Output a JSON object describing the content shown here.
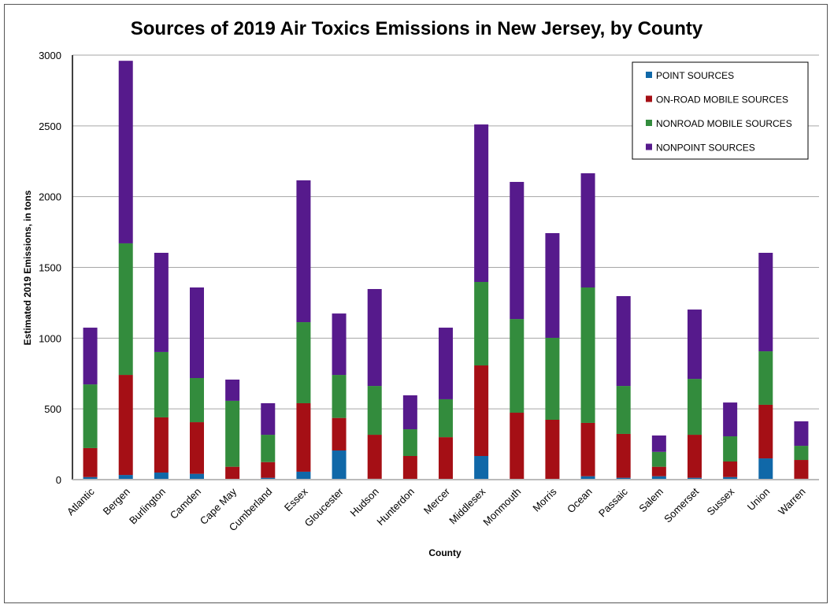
{
  "chart_data": {
    "type": "bar",
    "stacked": true,
    "title": "Sources of 2019 Air Toxics Emissions in New Jersey, by County",
    "xlabel": "County",
    "ylabel": "Estimated 2019  Emissions, in tons",
    "ylim": [
      0,
      3000
    ],
    "yticks": [
      0,
      500,
      1000,
      1500,
      2000,
      2500,
      3000
    ],
    "grid": true,
    "legend_position": "top-right",
    "categories": [
      "Atlantic",
      "Bergen",
      "Burlington",
      "Camden",
      "Cape May",
      "Cumberland",
      "Essex",
      "Gloucester",
      "Hudson",
      "Hunterdon",
      "Mercer",
      "Middlesex",
      "Monmouth",
      "Morris",
      "Ocean",
      "Passaic",
      "Salem",
      "Somerset",
      "Sussex",
      "Union",
      "Warren"
    ],
    "series": [
      {
        "name": "POINT SOURCES",
        "color": "#1068a8",
        "values": [
          18,
          33,
          50,
          41,
          0,
          13,
          56,
          206,
          6,
          0,
          0,
          167,
          0,
          5,
          24,
          13,
          24,
          13,
          18,
          150,
          6
        ]
      },
      {
        "name": "ON-ROAD MOBILE SOURCES",
        "color": "#a50f15",
        "values": [
          205,
          707,
          390,
          365,
          91,
          111,
          484,
          230,
          311,
          167,
          300,
          640,
          473,
          418,
          377,
          310,
          67,
          304,
          110,
          379,
          133
        ]
      },
      {
        "name": "NONROAD MOBILE SOURCES",
        "color": "#338c3d",
        "values": [
          450,
          930,
          462,
          312,
          466,
          193,
          573,
          304,
          345,
          189,
          268,
          590,
          662,
          579,
          957,
          339,
          105,
          395,
          178,
          378,
          100
        ]
      },
      {
        "name": "NONPOINT SOURCES",
        "color": "#561a8c",
        "values": [
          401,
          1290,
          701,
          640,
          150,
          223,
          1002,
          434,
          685,
          240,
          506,
          1113,
          969,
          740,
          807,
          635,
          116,
          490,
          239,
          696,
          173
        ]
      }
    ]
  }
}
